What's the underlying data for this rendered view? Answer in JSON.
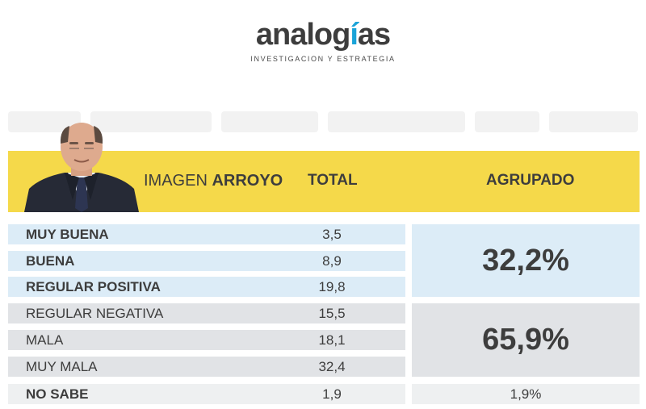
{
  "brand": {
    "name_pre": "analog",
    "name_accent": "í",
    "name_post": "as",
    "tagline": "INVESTIGACION Y ESTRATEGIA"
  },
  "header": {
    "title_regular": "IMAGEN ",
    "title_bold": "ARROYO",
    "total_label": "TOTAL",
    "grouped_label": "AGRUPADO"
  },
  "colors": {
    "header_band": "#f5d94a",
    "positive_rows": "#dcecf7",
    "negative_rows": "#e1e3e6",
    "unknown_row": "#eef0f1",
    "brand_accent": "#1aa3d8"
  },
  "chart_data": {
    "type": "table",
    "columns": [
      "IMAGEN ARROYO",
      "TOTAL",
      "AGRUPADO"
    ],
    "rows": [
      {
        "label": "MUY BUENA",
        "value": "3,5",
        "group": "positive"
      },
      {
        "label": "BUENA",
        "value": "8,9",
        "group": "positive"
      },
      {
        "label": "REGULAR POSITIVA",
        "value": "19,8",
        "group": "positive"
      },
      {
        "label": "REGULAR NEGATIVA",
        "value": "15,5",
        "group": "negative"
      },
      {
        "label": "MALA",
        "value": "18,1",
        "group": "negative"
      },
      {
        "label": "MUY MALA",
        "value": "32,4",
        "group": "negative"
      },
      {
        "label": "NO SABE",
        "value": "1,9",
        "group": "unknown"
      }
    ],
    "grouped": [
      {
        "group": "positive",
        "value": "32,2%"
      },
      {
        "group": "negative",
        "value": "65,9%"
      },
      {
        "group": "unknown",
        "value": "1,9%"
      }
    ]
  }
}
